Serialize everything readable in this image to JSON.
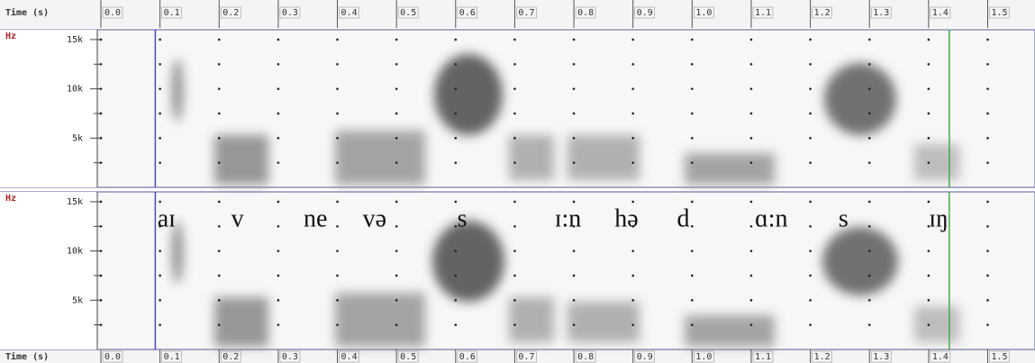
{
  "chart_data": {
    "type": "spectrogram",
    "x_label": "Time (s)",
    "y_label": "Hz",
    "xlim": [
      0,
      1.58
    ],
    "xticks": [
      {
        "value": 0,
        "label": "0.0"
      },
      0.1,
      0.2,
      0.3,
      0.4,
      0.5,
      0.6,
      0.7,
      0.8,
      0.9,
      {
        "value": 1,
        "label": "1.0"
      },
      1.1,
      1.2,
      1.3,
      1.4,
      1.5
    ],
    "ylim": [
      0,
      16000
    ],
    "yticks": [
      {
        "value": 5000,
        "label": "5k"
      },
      {
        "value": 10000,
        "label": "10k"
      },
      {
        "value": 15000,
        "label": "15k"
      }
    ],
    "minor_yticks": [
      2500,
      7500,
      12500
    ],
    "grid": true,
    "cursors": [
      {
        "x": 0.092,
        "color": "#4a4ac8"
      },
      {
        "x": 1.435,
        "color": "#3cb043"
      }
    ],
    "annotations": [
      {
        "text": "aɪ",
        "x": 0.111
      },
      {
        "text": "v",
        "x": 0.231
      },
      {
        "text": "ne",
        "x": 0.363
      },
      {
        "text": "və",
        "x": 0.463
      },
      {
        "text": "s",
        "x": 0.611
      },
      {
        "text": "ɪ:n",
        "x": 0.79
      },
      {
        "text": "hə",
        "x": 0.889
      },
      {
        "text": "d",
        "x": 0.985
      },
      {
        "text": "ɑ:n",
        "x": 1.134
      },
      {
        "text": "s",
        "x": 1.256
      },
      {
        "text": "ɪŋ",
        "x": 1.417
      }
    ]
  }
}
